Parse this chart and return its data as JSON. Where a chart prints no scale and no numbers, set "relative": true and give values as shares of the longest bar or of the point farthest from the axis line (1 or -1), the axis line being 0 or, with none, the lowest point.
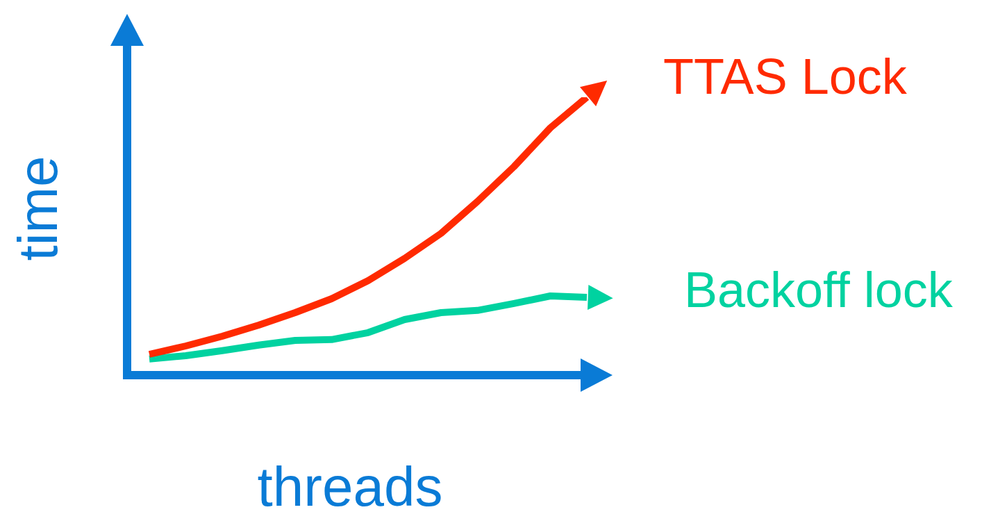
{
  "chart_data": {
    "type": "line",
    "relative": true,
    "xlabel": "threads",
    "ylabel": "time",
    "legend": "right",
    "marker": "none",
    "line_style": "solid",
    "categories": [
      null,
      null,
      null,
      null,
      null,
      null,
      null,
      null,
      null,
      null,
      null,
      null,
      null
    ],
    "series": [
      {
        "name": "TTAS Lock",
        "color": "#ff2a00",
        "values": [
          0.075,
          0.105,
          0.14,
          0.18,
          0.225,
          0.275,
          0.34,
          0.42,
          0.51,
          0.625,
          0.75,
          0.89,
          1
        ]
      },
      {
        "name": "Backoff lock",
        "color": "#00d2a0",
        "values": [
          0.058,
          0.07,
          0.088,
          0.108,
          0.125,
          0.128,
          0.153,
          0.2,
          0.225,
          0.233,
          0.258,
          0.285,
          0.28
        ]
      }
    ]
  }
}
